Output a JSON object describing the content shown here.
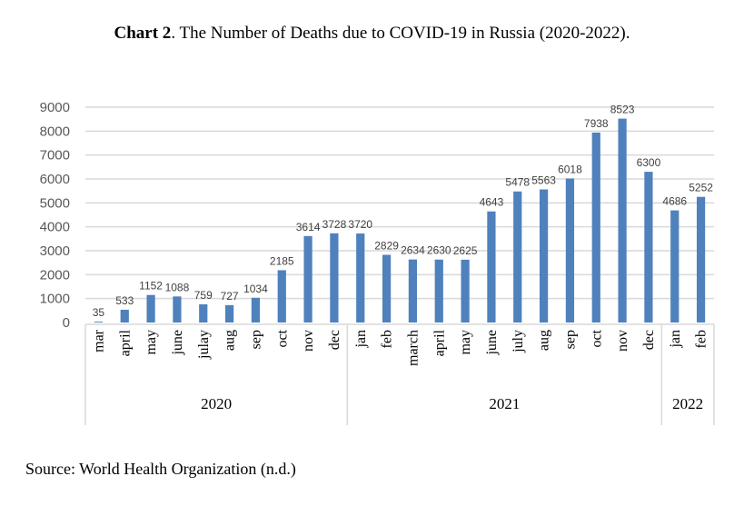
{
  "header": {
    "title_bold": "Chart 2",
    "title_rest": ". The Number of Deaths due to COVID-19 in Russia (2020-2022)."
  },
  "footer": {
    "source": "Source: World Health Organization (n.d.)"
  },
  "chart_data": {
    "type": "bar",
    "title": "Chart 2. The Number of Deaths due to COVID-19 in Russia (2020-2022).",
    "xlabel": "",
    "ylabel": "",
    "ylim": [
      0,
      9000
    ],
    "yticks": [
      0,
      1000,
      2000,
      3000,
      4000,
      5000,
      6000,
      7000,
      8000,
      9000
    ],
    "grid": true,
    "legend": "none",
    "bar_color": "#4f81bd",
    "categories": [
      "mar",
      "april",
      "may",
      "june",
      "julay",
      "aug",
      "sep",
      "oct",
      "nov",
      "dec",
      "jan",
      "feb",
      "march",
      "april",
      "may",
      "june",
      "july",
      "aug",
      "sep",
      "oct",
      "nov",
      "dec",
      "jan",
      "feb"
    ],
    "values": [
      35,
      533,
      1152,
      1088,
      759,
      727,
      1034,
      2185,
      3614,
      3728,
      3720,
      2829,
      2634,
      2630,
      2625,
      4643,
      5478,
      5563,
      6018,
      7938,
      8523,
      6300,
      4686,
      5252
    ],
    "groups": [
      {
        "label": "2020",
        "count": 10
      },
      {
        "label": "2021",
        "count": 12
      },
      {
        "label": "2022",
        "count": 2
      }
    ]
  }
}
